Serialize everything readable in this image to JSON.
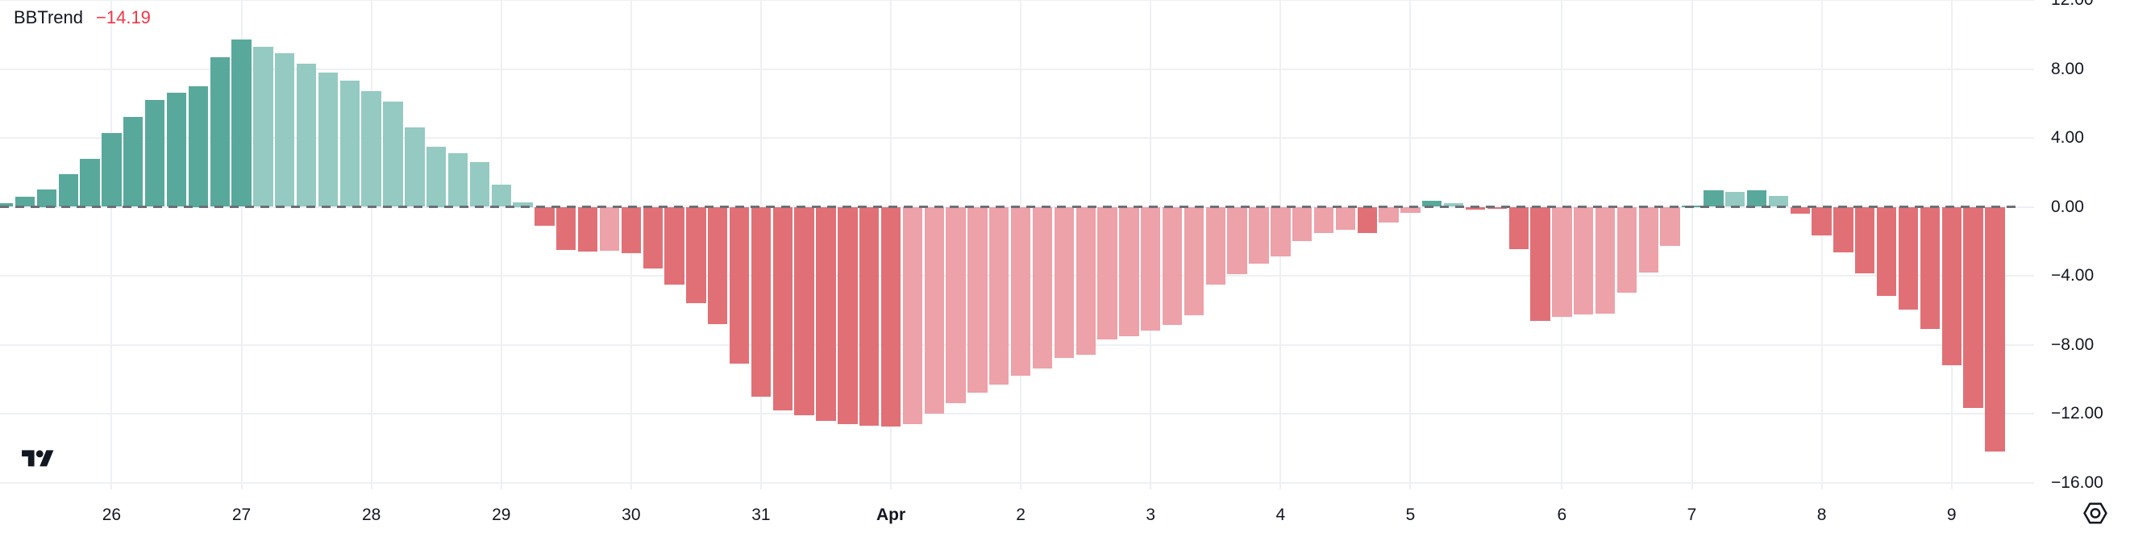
{
  "header": {
    "indicator_name": "BBTrend",
    "indicator_value": "−14.19"
  },
  "colors": {
    "background": "#ffffff",
    "bar_up_strong": "#58a99b",
    "bar_up_weak": "#94cac1",
    "bar_down_strong": "#e17076",
    "bar_down_weak": "#eda1a8",
    "value_text": "#f23645",
    "axis_text": "#131722",
    "grid": "#eef0f3",
    "zero_line": "#6b7077",
    "logo": "#131722"
  },
  "chart_data": {
    "type": "bar",
    "title": "BBTrend",
    "current_value": -14.19,
    "xlabel": "",
    "ylabel": "",
    "ylim": [
      -16,
      12
    ],
    "grid": true,
    "zero_line_style": "dashed",
    "y_ticks": [
      {
        "value": 12,
        "label": "12.00"
      },
      {
        "value": 8,
        "label": "8.00"
      },
      {
        "value": 4,
        "label": "4.00"
      },
      {
        "value": 0,
        "label": "0.00"
      },
      {
        "value": -4,
        "label": "−4.00"
      },
      {
        "value": -8,
        "label": "−8.00"
      },
      {
        "value": -12,
        "label": "−12.00"
      },
      {
        "value": -16,
        "label": "−16.00"
      }
    ],
    "x_ticks": [
      {
        "label": "26",
        "bar_index": 5,
        "bold": false
      },
      {
        "label": "27",
        "bar_index": 11,
        "bold": false
      },
      {
        "label": "28",
        "bar_index": 17,
        "bold": false
      },
      {
        "label": "29",
        "bar_index": 23,
        "bold": false
      },
      {
        "label": "30",
        "bar_index": 29,
        "bold": false
      },
      {
        "label": "31",
        "bar_index": 35,
        "bold": false
      },
      {
        "label": "Apr",
        "bar_index": 41,
        "bold": true
      },
      {
        "label": "2",
        "bar_index": 47,
        "bold": false
      },
      {
        "label": "3",
        "bar_index": 53,
        "bold": false
      },
      {
        "label": "4",
        "bar_index": 59,
        "bold": false
      },
      {
        "label": "5",
        "bar_index": 65,
        "bold": false
      },
      {
        "label": "6",
        "bar_index": 72,
        "bold": false
      },
      {
        "label": "7",
        "bar_index": 78,
        "bold": false
      },
      {
        "label": "8",
        "bar_index": 84,
        "bold": false
      },
      {
        "label": "9",
        "bar_index": 90,
        "bold": false
      }
    ],
    "series": [
      {
        "name": "BBTrend",
        "values": [
          0.2,
          0.6,
          1.0,
          1.9,
          2.8,
          4.3,
          5.2,
          6.2,
          6.6,
          7.0,
          8.7,
          9.7,
          9.3,
          8.9,
          8.3,
          7.8,
          7.3,
          6.7,
          6.1,
          4.6,
          3.5,
          3.1,
          2.6,
          1.3,
          0.25,
          -1.1,
          -2.5,
          -2.6,
          -2.55,
          -2.7,
          -3.6,
          -4.5,
          -5.6,
          -6.8,
          -9.1,
          -11.0,
          -11.8,
          -12.1,
          -12.4,
          -12.6,
          -12.7,
          -12.75,
          -12.6,
          -12.0,
          -11.4,
          -10.8,
          -10.3,
          -9.8,
          -9.4,
          -8.75,
          -8.6,
          -7.7,
          -7.5,
          -7.2,
          -6.85,
          -6.3,
          -4.5,
          -3.9,
          -3.3,
          -2.9,
          -2.0,
          -1.5,
          -1.35,
          -1.5,
          -0.9,
          -0.35,
          0.35,
          0.2,
          -0.15,
          -0.1,
          -2.45,
          -6.6,
          -6.4,
          -6.25,
          -6.2,
          -5.0,
          -3.8,
          -2.25,
          0.05,
          0.95,
          0.85,
          0.95,
          0.65,
          -0.4,
          -1.65,
          -2.65,
          -3.85,
          -5.15,
          -5.95,
          -7.1,
          -9.2,
          -11.65,
          -14.19
        ],
        "shades": [
          "g",
          "g",
          "g",
          "g",
          "g",
          "g",
          "g",
          "g",
          "g",
          "g",
          "g",
          "g",
          "G",
          "G",
          "G",
          "G",
          "G",
          "G",
          "G",
          "G",
          "G",
          "G",
          "G",
          "G",
          "G",
          "r",
          "r",
          "r",
          "R",
          "r",
          "r",
          "r",
          "r",
          "r",
          "r",
          "r",
          "r",
          "r",
          "r",
          "r",
          "r",
          "r",
          "R",
          "R",
          "R",
          "R",
          "R",
          "R",
          "R",
          "R",
          "R",
          "R",
          "R",
          "R",
          "R",
          "R",
          "R",
          "R",
          "R",
          "R",
          "R",
          "R",
          "R",
          "r",
          "R",
          "R",
          "g",
          "G",
          "r",
          "r",
          "r",
          "r",
          "R",
          "R",
          "R",
          "R",
          "R",
          "R",
          "g",
          "g",
          "G",
          "g",
          "G",
          "r",
          "r",
          "r",
          "r",
          "r",
          "r",
          "r",
          "r",
          "r",
          "r"
        ]
      }
    ]
  },
  "footer": {
    "logo": "tradingview-logo"
  },
  "price_scale": {
    "settings_icon": "gear-hexagon-icon"
  }
}
